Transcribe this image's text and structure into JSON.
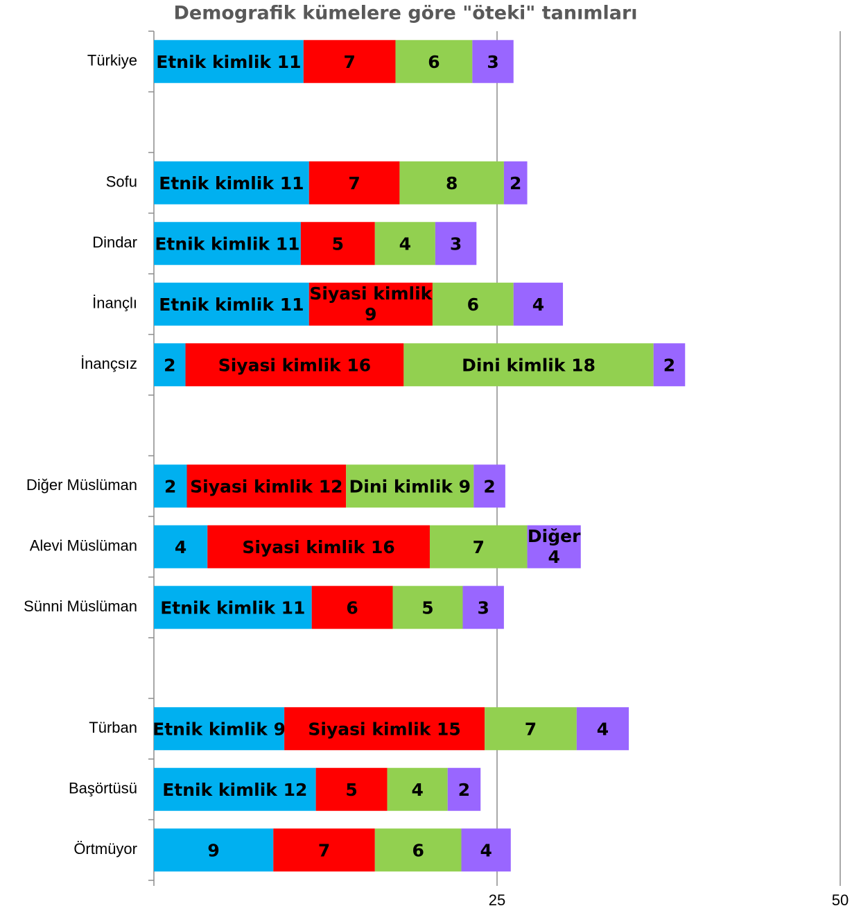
{
  "chart_data": {
    "type": "stacked-barh",
    "title": "Demografik kümelere göre \"öteki\" tanımları",
    "categories": [
      "Türkiye",
      null,
      "Sofu",
      "Dindar",
      "İnançlı",
      "İnançsız",
      null,
      "Diğer Müslüman",
      "Alevi Müslüman",
      "Sünni Müslüman",
      null,
      "Türban",
      "Başörtüsü",
      "Örtmüyor"
    ],
    "series": [
      {
        "name": "Etnik kimlik",
        "color": "#00b0f0",
        "values": [
          10.9,
          null,
          11.3,
          10.7,
          11.3,
          2.3,
          null,
          2.4,
          3.9,
          11.5,
          null,
          9.5,
          11.8,
          8.7
        ],
        "value_labels": [
          "Etnik kimlik 11",
          null,
          "Etnik kimlik 11",
          "Etnik kimlik 11",
          "Etnik kimlik 11",
          "2",
          null,
          "2",
          "4",
          "Etnik kimlik 11",
          null,
          "Etnik kimlik 9",
          "Etnik kimlik 12",
          "9"
        ]
      },
      {
        "name": "Siyasi kimlik",
        "color": "#ff0000",
        "values": [
          6.7,
          null,
          6.6,
          5.4,
          9.0,
          15.9,
          null,
          11.6,
          16.2,
          5.9,
          null,
          14.6,
          5.2,
          7.4
        ],
        "value_labels": [
          "7",
          null,
          "7",
          "5",
          "Siyasi kimlik 9",
          "Siyasi kimlik 16",
          null,
          "Siyasi kimlik 12",
          "Siyasi kimlik 16",
          "6",
          null,
          "Siyasi kimlik 15",
          "5",
          "7"
        ]
      },
      {
        "name": "Dini kimlik",
        "color": "#92d050",
        "values": [
          5.6,
          null,
          7.6,
          4.4,
          5.9,
          18.2,
          null,
          9.3,
          7.1,
          5.1,
          null,
          6.7,
          4.4,
          6.3
        ],
        "value_labels": [
          "6",
          null,
          "8",
          "4",
          "6",
          "Dini kimlik 18",
          null,
          "Dini kimlik 9",
          "7",
          "5",
          null,
          "7",
          "4",
          "6"
        ]
      },
      {
        "name": "Diğer",
        "color": "#9966ff",
        "values": [
          3.0,
          null,
          1.7,
          3.0,
          3.6,
          2.3,
          null,
          2.3,
          3.9,
          3.0,
          null,
          3.8,
          2.4,
          3.6
        ],
        "value_labels": [
          "3",
          null,
          "2",
          "3",
          "4",
          "2",
          null,
          "2",
          "Diğer 4",
          "3",
          null,
          "4",
          "2",
          "4"
        ]
      }
    ],
    "xlim": [
      0,
      50
    ],
    "xticks": [
      25,
      50
    ],
    "grid": true
  }
}
